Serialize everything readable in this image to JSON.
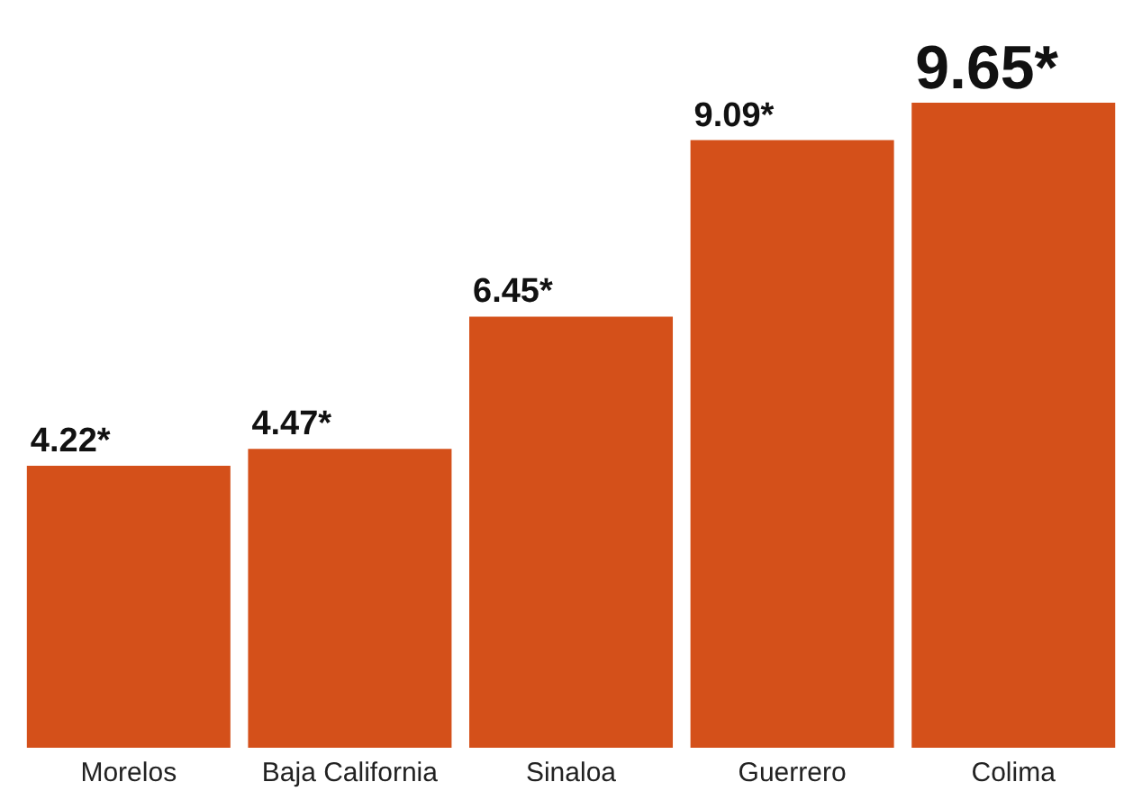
{
  "chart_data": {
    "type": "bar",
    "categories": [
      "Morelos",
      "Baja California",
      "Sinaloa",
      "Guerrero",
      "Colima"
    ],
    "values": [
      4.22,
      4.47,
      6.45,
      9.09,
      9.65
    ],
    "value_labels": [
      "4.22*",
      "4.47*",
      "6.45*",
      "9.09*",
      "9.65*"
    ],
    "color": "#d4501a",
    "grid": false,
    "legend": false
  }
}
